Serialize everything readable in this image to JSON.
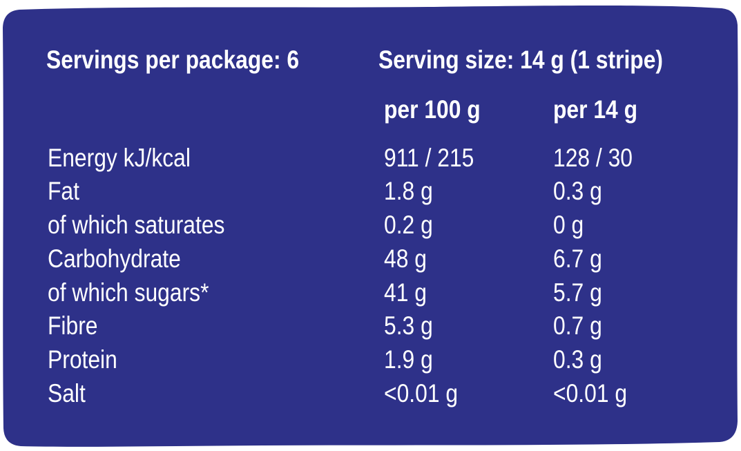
{
  "colors": {
    "panel": "#2e3189",
    "text": "#ffffff"
  },
  "header": {
    "servings_per_package": "Servings per package: 6",
    "serving_size": "Serving size: 14 g (1 stripe)",
    "col_per_100g": "per 100 g",
    "col_per_serving": "per 14 g"
  },
  "rows": [
    {
      "name": "Energy kJ/kcal",
      "per_100g": "911 / 215",
      "per_serving": "128 / 30"
    },
    {
      "name": "Fat",
      "per_100g": "1.8 g",
      "per_serving": "0.3 g"
    },
    {
      "name": "of which saturates",
      "per_100g": "0.2 g",
      "per_serving": "0 g"
    },
    {
      "name": "Carbohydrate",
      "per_100g": "48 g",
      "per_serving": "6.7 g"
    },
    {
      "name": "of which sugars*",
      "per_100g": "41 g",
      "per_serving": "5.7 g"
    },
    {
      "name": "Fibre",
      "per_100g": "5.3 g",
      "per_serving": "0.7 g"
    },
    {
      "name": "Protein",
      "per_100g": "1.9 g",
      "per_serving": "0.3 g"
    },
    {
      "name": "Salt",
      "per_100g": "<0.01 g",
      "per_serving": "<0.01 g"
    }
  ]
}
